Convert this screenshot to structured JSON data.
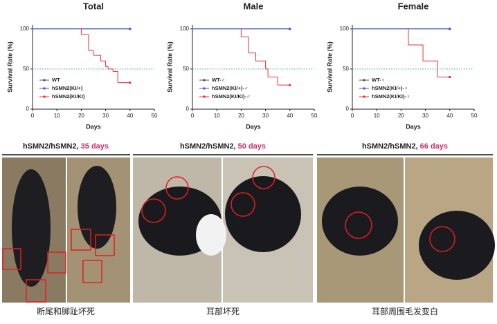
{
  "chart_data": [
    {
      "type": "step",
      "title": "Total",
      "x_label": "Days",
      "y_label": "Survival Rate (%)",
      "xlim": [
        0,
        50
      ],
      "ylim": [
        0,
        105
      ],
      "xticks": [
        0,
        10,
        20,
        30,
        40,
        50
      ],
      "yticks": [
        0,
        50,
        100
      ],
      "reference_line": 50,
      "series": [
        {
          "name": "WT",
          "color": "#555555",
          "x": [
            0,
            40
          ],
          "values": [
            100,
            100
          ]
        },
        {
          "name": "hSMN2(KI/+)",
          "color": "#3a55e0",
          "x": [
            0,
            40
          ],
          "values": [
            100,
            100
          ]
        },
        {
          "name": "hSMN2(KI/KI)",
          "color": "#e8312a",
          "x": [
            20,
            20,
            23,
            25,
            28,
            30,
            31,
            33,
            35,
            40
          ],
          "values": [
            100,
            93,
            73,
            67,
            60,
            53,
            50,
            47,
            33,
            33
          ]
        }
      ]
    },
    {
      "type": "step",
      "title": "Male",
      "x_label": "Days",
      "y_label": "Survival Rate (%)",
      "xlim": [
        0,
        50
      ],
      "ylim": [
        0,
        105
      ],
      "xticks": [
        0,
        10,
        20,
        30,
        40,
        50
      ],
      "yticks": [
        0,
        50,
        100
      ],
      "reference_line": 50,
      "series": [
        {
          "name": "WT-♂",
          "color": "#555555",
          "x": [
            0,
            40
          ],
          "values": [
            100,
            100
          ]
        },
        {
          "name": "hSMN2(KI/+)-♂",
          "color": "#3a55e0",
          "x": [
            0,
            40
          ],
          "values": [
            100,
            100
          ]
        },
        {
          "name": "hSMN2(KI/KI)-♂",
          "color": "#e8312a",
          "x": [
            20,
            20,
            23,
            26,
            30,
            31,
            35,
            40
          ],
          "values": [
            100,
            90,
            70,
            60,
            50,
            40,
            30,
            30
          ]
        }
      ]
    },
    {
      "type": "step",
      "title": "Female",
      "x_label": "Days",
      "y_label": "Survival Rate (%)",
      "xlim": [
        0,
        50
      ],
      "ylim": [
        0,
        105
      ],
      "xticks": [
        0,
        10,
        20,
        30,
        40,
        50
      ],
      "yticks": [
        0,
        50,
        100
      ],
      "reference_line": 50,
      "series": [
        {
          "name": "WT-♀",
          "color": "#555555",
          "x": [
            0,
            40
          ],
          "values": [
            100,
            100
          ]
        },
        {
          "name": "hSMN2(KI/+)-♀",
          "color": "#3a55e0",
          "x": [
            0,
            40
          ],
          "values": [
            100,
            100
          ]
        },
        {
          "name": "hSMN2(KI/KI)-♀",
          "color": "#e8312a",
          "x": [
            23,
            23,
            29,
            35,
            40
          ],
          "values": [
            100,
            80,
            60,
            40,
            40
          ]
        }
      ]
    }
  ],
  "photo_panels": [
    {
      "genotype": "hSMN2/hSMN2, ",
      "age": "35 days",
      "caption": "断尾和脚趾坏死"
    },
    {
      "genotype": "hSMN2/hSMN2, ",
      "age": "50 days",
      "caption": "耳部坏死"
    },
    {
      "genotype": "hSMN2/hSMN2, ",
      "age": "66 days",
      "caption": "耳部周围毛发变白"
    }
  ]
}
